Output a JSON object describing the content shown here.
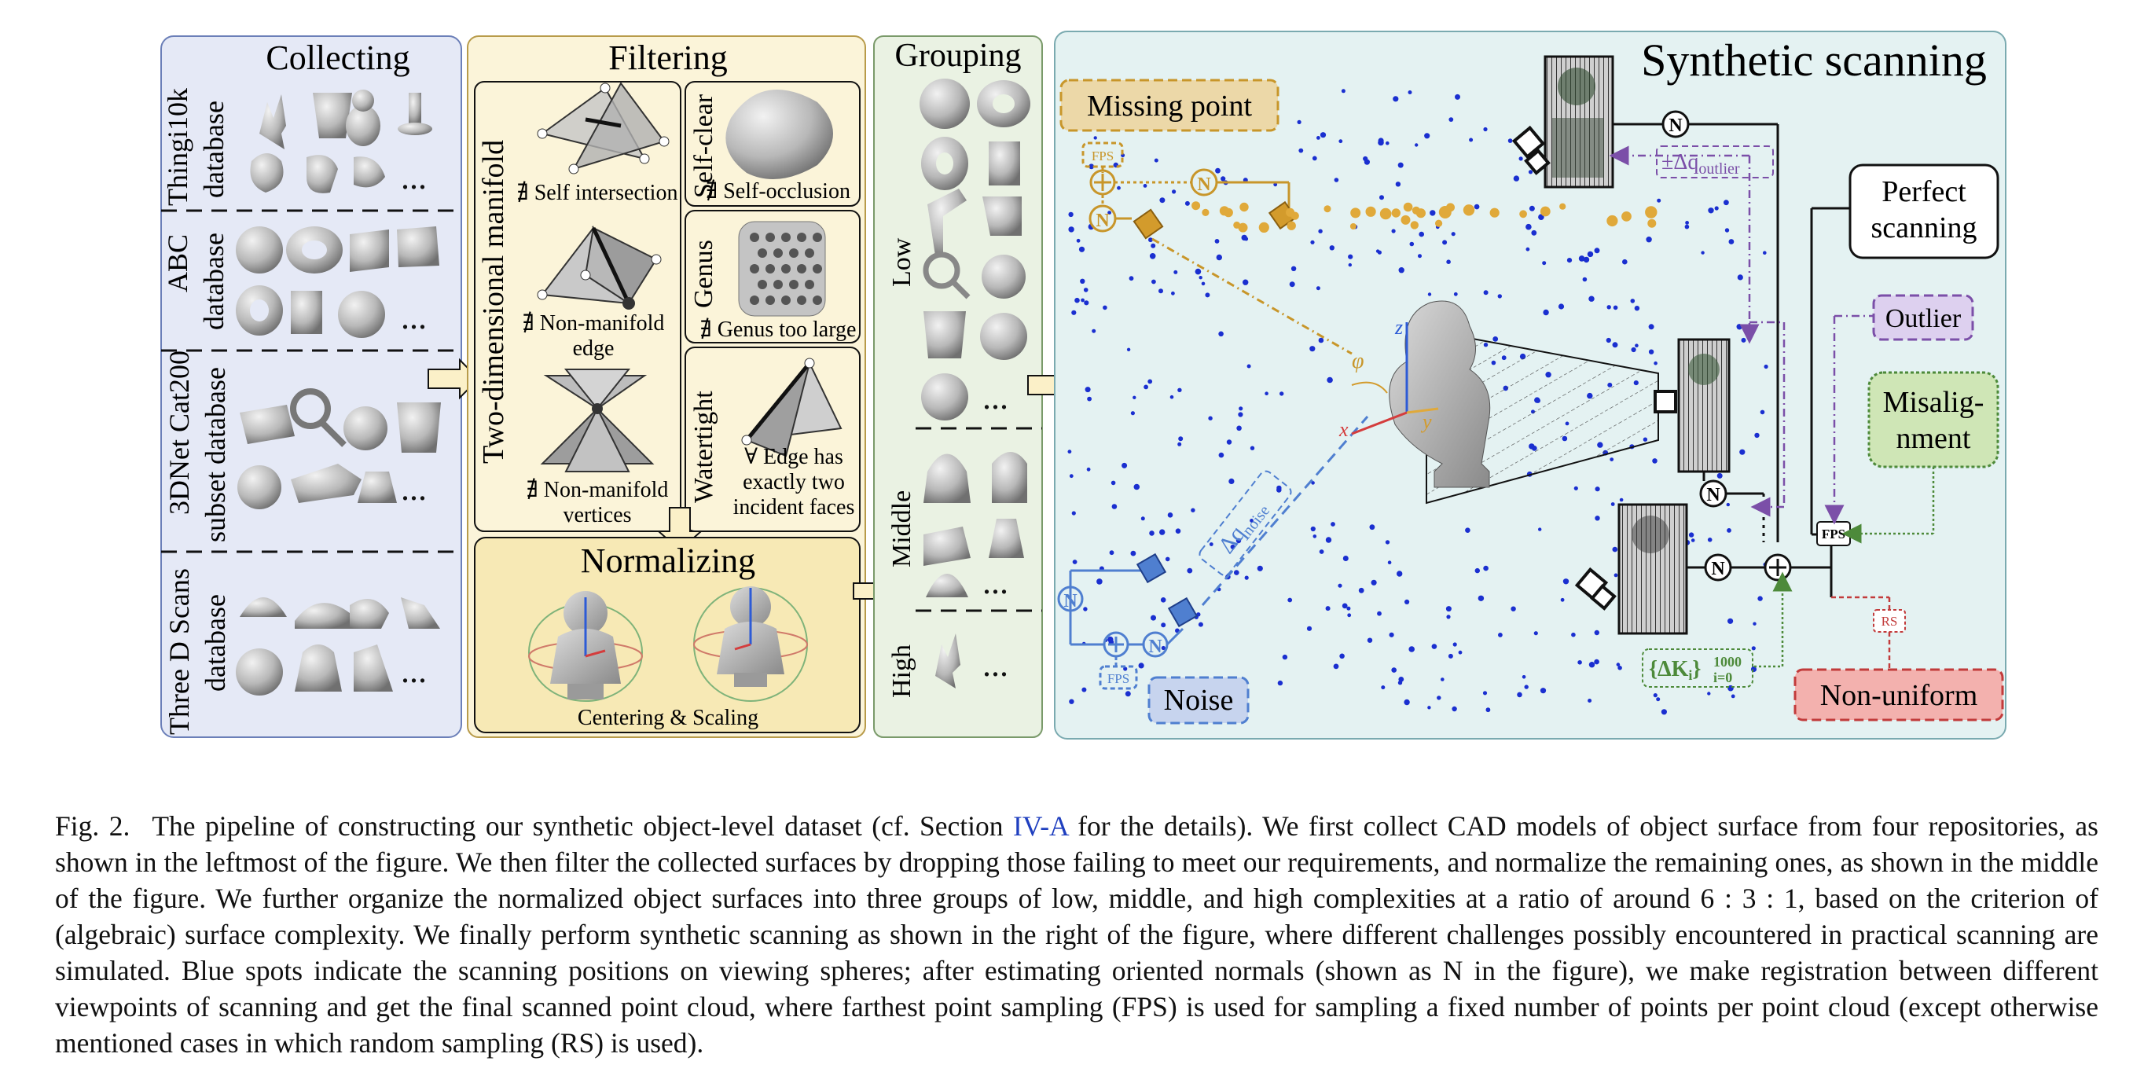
{
  "figure": {
    "panels": {
      "collecting": {
        "title": "Collecting",
        "databases": [
          "Thingi10k database",
          "ABC database",
          "3DNet Cat200 subset database",
          "Three D Scans database"
        ],
        "db_labels": [
          [
            "Thingi10k",
            "database"
          ],
          [
            "ABC",
            "database"
          ],
          [
            "3DNet Cat200",
            "subset database"
          ],
          [
            "Three D Scans",
            "database"
          ]
        ],
        "ellipsis": "..."
      },
      "filtering": {
        "title": "Filtering",
        "manifold_label": "Two-dimensional manifold",
        "self_intersection": "∄ Self intersection",
        "nonmanifold_edge": [
          "∄ Non-manifold",
          "edge"
        ],
        "nonmanifold_vertices": [
          "∄ Non-manifold",
          "vertices"
        ],
        "self_clear_label": "Self-clear",
        "self_occlusion": "∄ Self-occlusion",
        "genus_label": "Genus",
        "genus_too_large": "∄ Genus too large",
        "watertight_label": "Watertight",
        "watertight_text": [
          "∀ Edge has",
          "exactly two",
          "incident faces"
        ]
      },
      "normalizing": {
        "title": "Normalizing",
        "caption": "Centering & Scaling"
      },
      "grouping": {
        "title": "Grouping",
        "groups": [
          "Low",
          "Middle",
          "High"
        ],
        "ellipsis": "..."
      },
      "synthetic": {
        "title": "Synthetic scanning",
        "missing_point": "Missing point",
        "noise": "Noise",
        "outlier": "Outlier",
        "misalignment": [
          "Misalig-",
          "nment"
        ],
        "perfect_scanning": [
          "Perfect",
          "scanning"
        ],
        "non_uniform": "Non-uniform",
        "fps": "FPS",
        "rs": "RS",
        "n_symbol": "N",
        "delta_q_outlier": "±Δq",
        "delta_q_outlier_sub": "outlier",
        "delta_q_noise": "Δq",
        "delta_q_noise_sub": "noise",
        "delta_k": "{ΔK",
        "delta_k_sub": "i",
        "delta_k_close": "}",
        "delta_k_range_top": "1000",
        "delta_k_range_bottom": "i=0",
        "axis_z": "z",
        "axis_x": "x",
        "axis_y": "y",
        "angle_phi": "φ"
      }
    },
    "colors": {
      "collect_bg": "#e5e9f6",
      "filter_bg": "#fbf4d9",
      "group_bg": "#eaf2e3",
      "scan_bg": "#e4f2f2",
      "missing": "#c8962a",
      "noise_blue": "#4f7fd0",
      "outlier_purple": "#7b4fa8",
      "misalign_green": "#4d8a3a",
      "nonuniform_red": "#c23b3b",
      "dots": "#1a2fd0"
    }
  },
  "caption": {
    "fig_label": "Fig. 2.",
    "text_before_ref": "The pipeline of constructing our synthetic object-level dataset (cf. Section ",
    "ref": "IV-A",
    "text_after_ref": " for the details). We first collect CAD models of object surface from four repositories, as shown in the leftmost of the figure. We then filter the collected surfaces by dropping those failing to meet our requirements, and normalize the remaining ones, as shown in the middle of the figure. We further organize the normalized object surfaces into three groups of low, middle, and high complexities at a ratio of around 6 : 3 : 1, based on the criterion of (algebraic) surface complexity. We finally perform synthetic scanning as shown in the right of the figure, where different challenges possibly encountered in practical scanning are simulated. Blue spots indicate the scanning positions on viewing spheres; after estimating oriented normals (shown as N in the figure), we make registration between different viewpoints of scanning and get the final scanned point cloud, where farthest point sampling (FPS) is used for sampling a fixed number of points per point cloud (except otherwise mentioned cases in which random sampling (RS) is used)."
  }
}
